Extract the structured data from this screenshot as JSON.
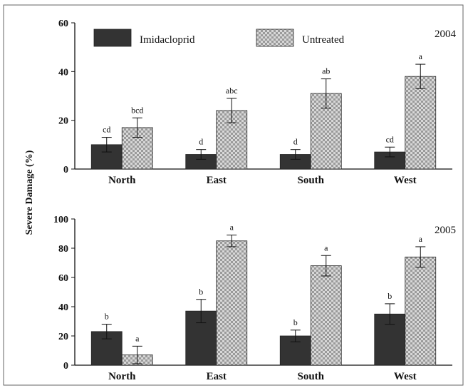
{
  "chart_data": {
    "ylabel": "Severe Damage (%)",
    "legend": {
      "placement": "top-left",
      "entries": [
        "Imidacloprid",
        "Untreated"
      ]
    },
    "series_colors": {
      "Imidacloprid": "#333333",
      "Untreated": "#c8c8c8"
    },
    "panels": [
      {
        "type": "bar",
        "title": "2004",
        "categories": [
          "North",
          "East",
          "South",
          "West"
        ],
        "ylim": [
          0,
          60
        ],
        "yticks": [
          0,
          20,
          40,
          60
        ],
        "series": [
          {
            "name": "Imidacloprid",
            "values": [
              10,
              6,
              6,
              7
            ],
            "errors": [
              3,
              2,
              2,
              2
            ],
            "letters": [
              "cd",
              "d",
              "d",
              "cd"
            ]
          },
          {
            "name": "Untreated",
            "values": [
              17,
              24,
              31,
              38
            ],
            "errors": [
              4,
              5,
              6,
              5
            ],
            "letters": [
              "bcd",
              "abc",
              "ab",
              "a"
            ]
          }
        ]
      },
      {
        "type": "bar",
        "title": "2005",
        "categories": [
          "North",
          "East",
          "South",
          "West"
        ],
        "ylim": [
          0,
          100
        ],
        "yticks": [
          0,
          20,
          40,
          60,
          80,
          100
        ],
        "series": [
          {
            "name": "Imidacloprid",
            "values": [
              23,
              37,
              20,
              35
            ],
            "errors": [
              5,
              8,
              4,
              7
            ],
            "letters": [
              "b",
              "b",
              "b",
              "b"
            ]
          },
          {
            "name": "Untreated",
            "values": [
              7,
              85,
              68,
              74
            ],
            "errors": [
              6,
              4,
              7,
              7
            ],
            "letters": [
              "a",
              "a",
              "a",
              "a"
            ]
          }
        ]
      }
    ]
  }
}
